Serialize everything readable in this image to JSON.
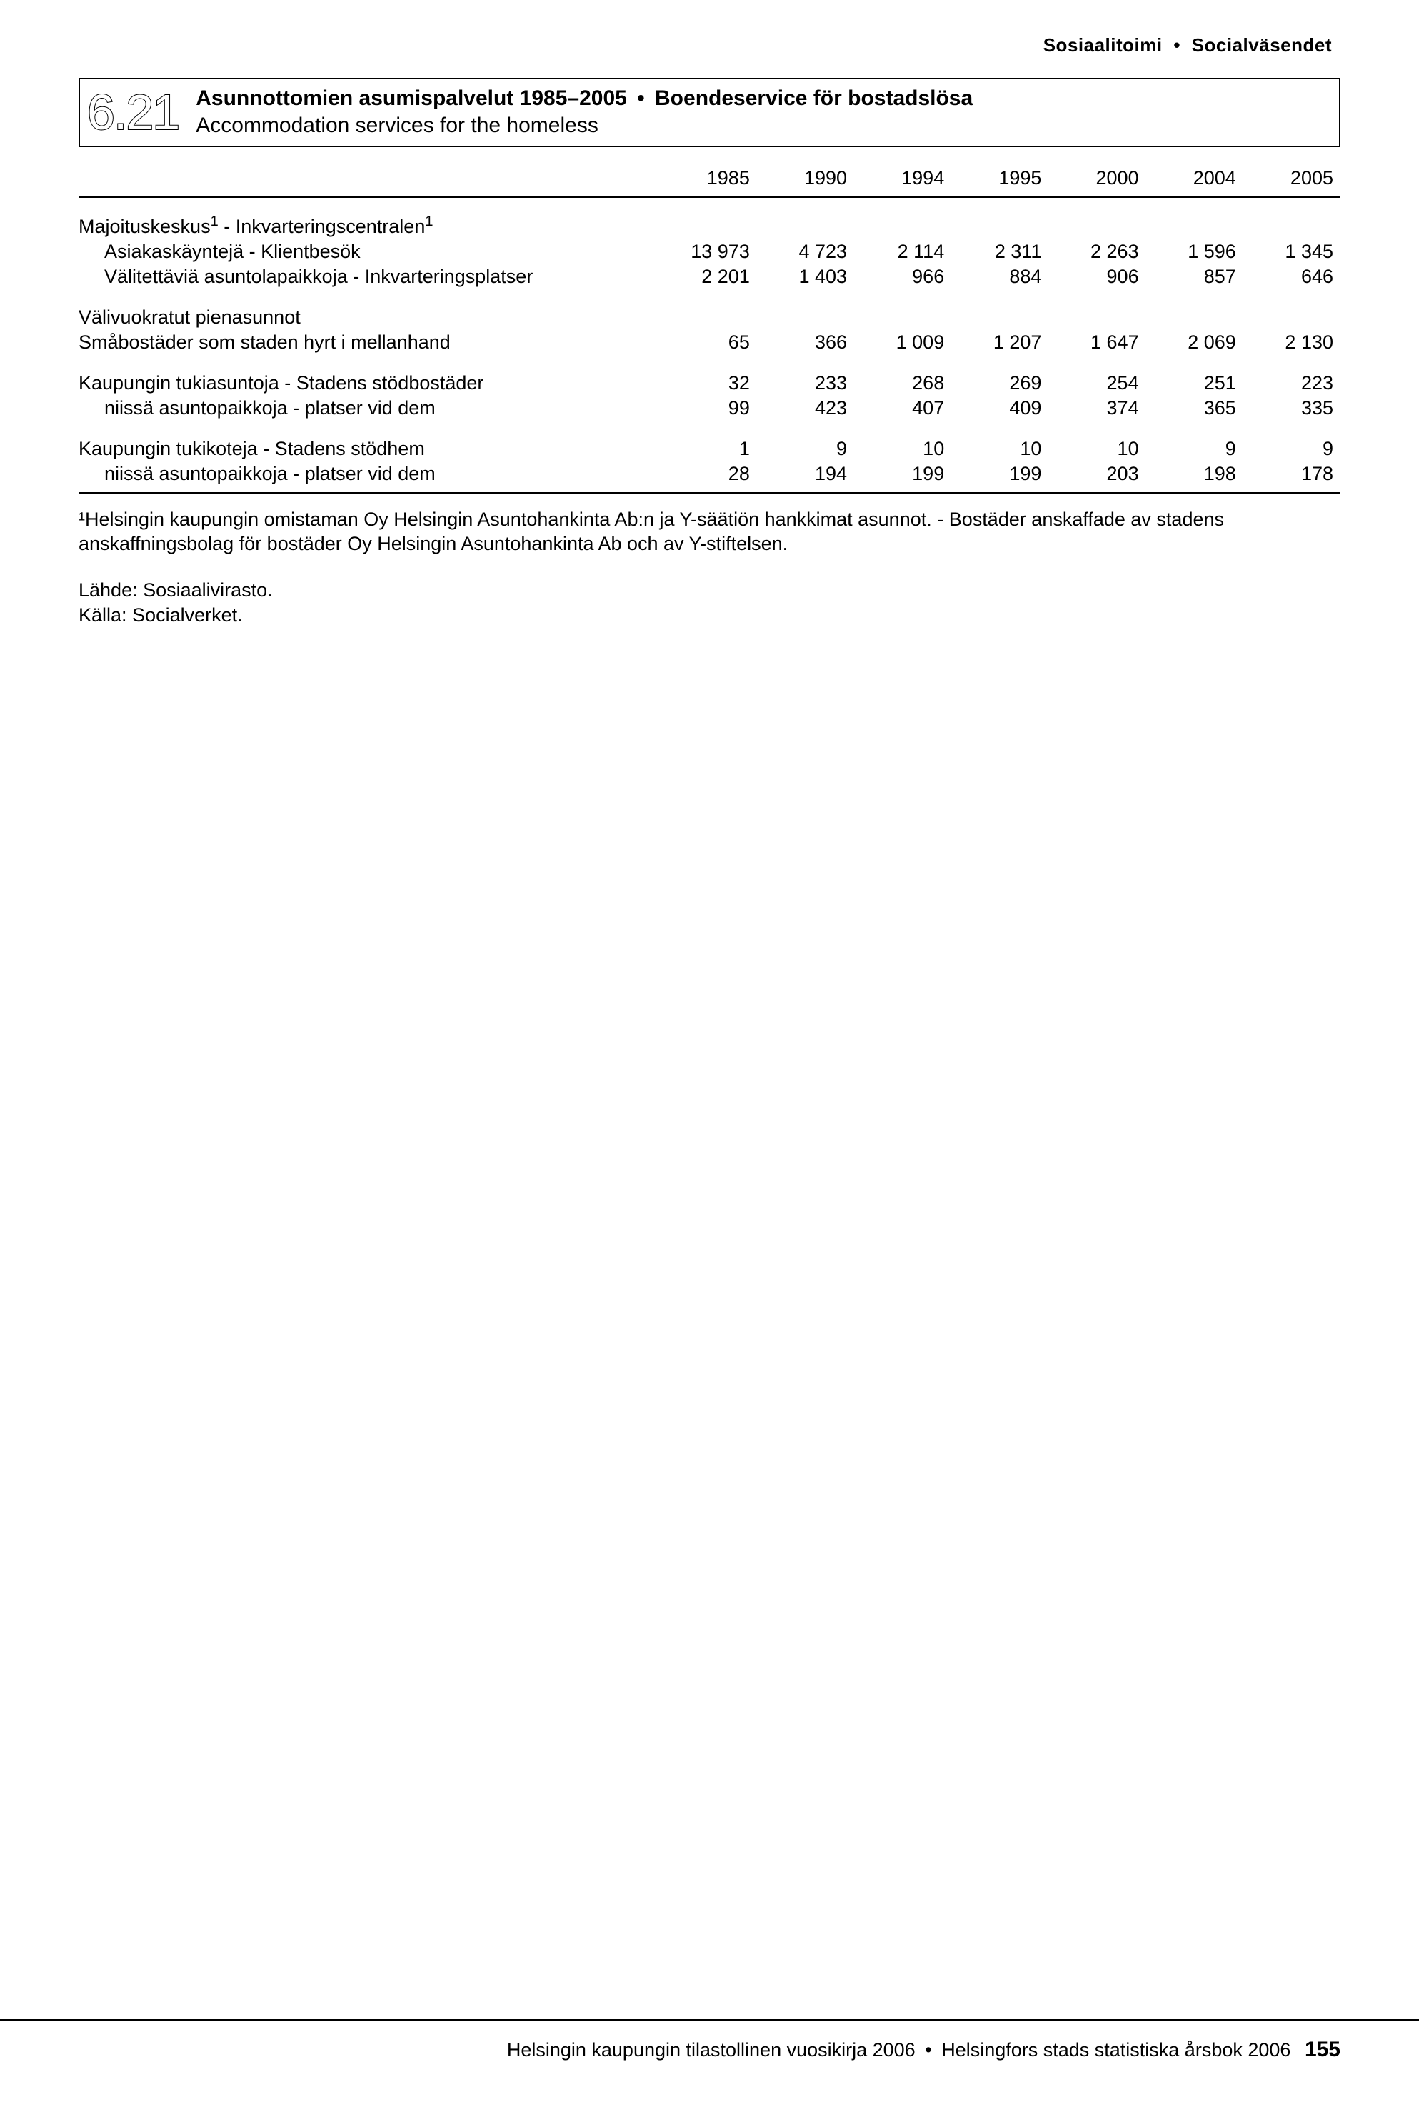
{
  "header": {
    "left": "Sosiaalitoimi",
    "right": "Socialväsendet"
  },
  "title": {
    "number": "6.21",
    "line1_a": "Asunnottomien asumispalvelut 1985–2005",
    "line1_b": "Boendeservice för bostadslösa",
    "line2": "Accommodation services for the homeless"
  },
  "years": [
    "1985",
    "1990",
    "1994",
    "1995",
    "2000",
    "2004",
    "2005"
  ],
  "rows": [
    {
      "type": "header",
      "label": "Majoituskeskus¹ - Inkvarteringscentralen¹",
      "indent": false
    },
    {
      "label": "Asiakaskäyntejä - Klientbesök",
      "indent": true,
      "v": [
        "13 973",
        "4 723",
        "2 114",
        "2 311",
        "2 263",
        "1 596",
        "1 345"
      ]
    },
    {
      "label": "Välitettäviä asuntolapaikkoja - Inkvarteringsplatser",
      "indent": true,
      "v": [
        "2 201",
        "1 403",
        "966",
        "884",
        "906",
        "857",
        "646"
      ]
    },
    {
      "type": "gap"
    },
    {
      "label": "Välivuokratut pienasunnot",
      "indent": false,
      "novals": true
    },
    {
      "label": "Småbostäder som staden hyrt i mellanhand",
      "indent": false,
      "v": [
        "65",
        "366",
        "1 009",
        "1 207",
        "1 647",
        "2 069",
        "2 130"
      ]
    },
    {
      "type": "gap"
    },
    {
      "label": "Kaupungin tukiasuntoja - Stadens stödbostäder",
      "indent": false,
      "v": [
        "32",
        "233",
        "268",
        "269",
        "254",
        "251",
        "223"
      ]
    },
    {
      "label": "niissä asuntopaikkoja - platser vid dem",
      "indent": true,
      "v": [
        "99",
        "423",
        "407",
        "409",
        "374",
        "365",
        "335"
      ]
    },
    {
      "type": "gap"
    },
    {
      "label": "Kaupungin tukikoteja - Stadens stödhem",
      "indent": false,
      "v": [
        "1",
        "9",
        "10",
        "10",
        "10",
        "9",
        "9"
      ]
    },
    {
      "label": "niissä asuntopaikkoja - platser vid dem",
      "indent": true,
      "lastrule": true,
      "v": [
        "28",
        "194",
        "199",
        "199",
        "203",
        "198",
        "178"
      ]
    }
  ],
  "footnote": "¹Helsingin kaupungin omistaman Oy Helsingin Asuntohankinta Ab:n ja Y-säätiön hankkimat asunnot. - Bostäder anskaffade av stadens anskaffningsbolag för bostäder Oy Helsingin Asuntohankinta Ab och av Y-stiftelsen.",
  "source1": "Lähde: Sosiaalivirasto.",
  "source2": "Källa: Socialverket.",
  "footer": {
    "left": "Helsingin kaupungin tilastollinen vuosikirja 2006",
    "right": "Helsingfors stads statistiska årsbok 2006",
    "page": "155"
  }
}
